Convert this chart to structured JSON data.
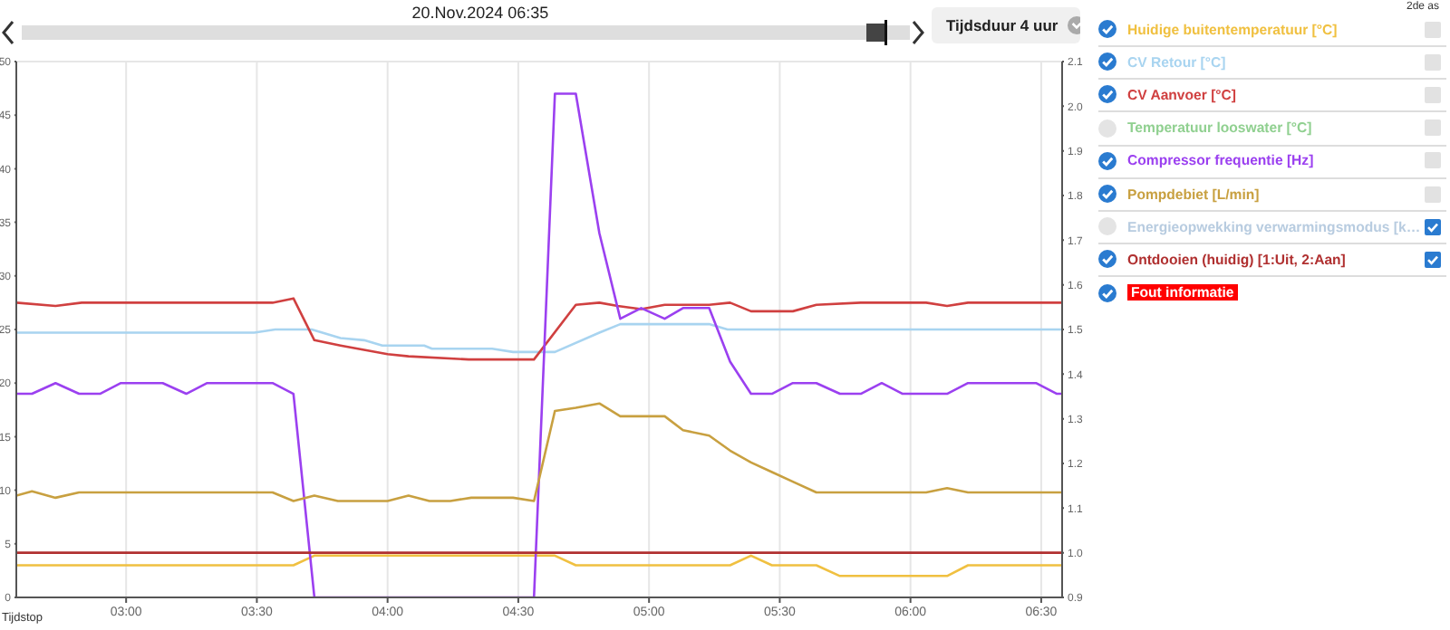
{
  "chart_data": {
    "type": "line",
    "title": "20.Nov.2024 06:35",
    "xlabel": "Tijdstop",
    "legend_title": "2de as",
    "annotations": [
      "Tijdsduur 4 uur",
      "Temperatuur looswater [°C]",
      "Energieopwekking verwarmingsmodus [k…",
      "Fout informatie"
    ],
    "xlim": [
      2.58,
      6.58
    ],
    "xticks": [
      {
        "value": 3,
        "label": "03:00"
      },
      {
        "value": 3.5,
        "label": "03:30"
      },
      {
        "value": 4,
        "label": "04:00"
      },
      {
        "value": 4.5,
        "label": "04:30"
      },
      {
        "value": 5,
        "label": "05:00"
      },
      {
        "value": 5.5,
        "label": "05:30"
      },
      {
        "value": 6,
        "label": "06:00"
      },
      {
        "value": 6.5,
        "label": "06:30"
      }
    ],
    "ylim": [
      0,
      50
    ],
    "yticks": [
      0,
      5,
      10,
      15,
      20,
      25,
      30,
      35,
      40,
      45,
      50
    ],
    "y2lim": [
      0.9,
      2.1
    ],
    "y2ticks": [
      0.9,
      {
        "value": 1,
        "label": "1.0"
      },
      1.1,
      1.2,
      1.3,
      1.4,
      1.5,
      1.6,
      1.7,
      1.8,
      1.9,
      {
        "value": 2,
        "label": "2.0"
      },
      2.1
    ],
    "grid": true,
    "legend": "right",
    "marker": "none",
    "line_style": "solid",
    "series": [
      {
        "name": "Huidige buitentemperatuur [°C]",
        "color": "#f0c040",
        "x": [
          2.58,
          3.64,
          3.72,
          4.64,
          4.72,
          5.31,
          5.39,
          5.47,
          5.64,
          5.73,
          6.14,
          6.22,
          6.58
        ],
        "values": [
          3.0,
          3.0,
          3.9,
          3.9,
          3.0,
          3.0,
          3.9,
          3.0,
          3.0,
          2.0,
          2.0,
          3.0,
          3.0
        ]
      },
      {
        "name": "CV Retour [°C]",
        "color": "#a8d4f0",
        "x": [
          2.58,
          3.49,
          3.57,
          3.71,
          3.82,
          3.91,
          3.98,
          4.14,
          4.17,
          4.4,
          4.48,
          4.64,
          4.81,
          4.89,
          5.23,
          5.3,
          6.58
        ],
        "values": [
          24.7,
          24.7,
          25.0,
          25.0,
          24.2,
          24.0,
          23.5,
          23.5,
          23.2,
          23.2,
          22.9,
          22.9,
          24.7,
          25.5,
          25.5,
          25.0,
          25.0
        ]
      },
      {
        "name": "CV Aanvoer [°C]",
        "color": "#d04040",
        "x": [
          2.58,
          2.73,
          2.83,
          3.56,
          3.64,
          3.72,
          3.82,
          3.91,
          4.0,
          4.08,
          4.31,
          4.56,
          4.72,
          4.81,
          4.88,
          4.97,
          5.06,
          5.23,
          5.31,
          5.39,
          5.55,
          5.64,
          5.81,
          6.06,
          6.14,
          6.22,
          6.58
        ],
        "values": [
          27.5,
          27.2,
          27.5,
          27.5,
          27.9,
          24.0,
          23.5,
          23.1,
          22.7,
          22.5,
          22.2,
          22.2,
          27.3,
          27.5,
          27.2,
          26.9,
          27.3,
          27.3,
          27.5,
          26.7,
          26.7,
          27.3,
          27.5,
          27.5,
          27.2,
          27.5,
          27.5
        ]
      },
      {
        "name": "Compressor frequentie [Hz]",
        "color": "#9b40f0",
        "x": [
          2.58,
          2.64,
          2.73,
          2.82,
          2.9,
          2.98,
          3.14,
          3.23,
          3.31,
          3.56,
          3.64,
          3.72,
          4.56,
          4.64,
          4.72,
          4.81,
          4.89,
          4.97,
          5.06,
          5.13,
          5.23,
          5.31,
          5.39,
          5.47,
          5.55,
          5.64,
          5.73,
          5.81,
          5.89,
          5.97,
          6.14,
          6.22,
          6.48,
          6.56,
          6.58
        ],
        "values": [
          19,
          19,
          20,
          19,
          19,
          20,
          20,
          19,
          20,
          20,
          19,
          0,
          0,
          47,
          47,
          34,
          26,
          27,
          26,
          27,
          27,
          22,
          19,
          19,
          20,
          20,
          19,
          19,
          20,
          19,
          19,
          20,
          20,
          19,
          19
        ]
      },
      {
        "name": "Pompdebiet [L/min]",
        "color": "#c8a040",
        "x": [
          2.58,
          2.64,
          2.73,
          2.82,
          3.56,
          3.64,
          3.72,
          3.81,
          4.0,
          4.08,
          4.16,
          4.24,
          4.32,
          4.48,
          4.56,
          4.64,
          4.72,
          4.81,
          4.89,
          5.06,
          5.13,
          5.23,
          5.31,
          5.39,
          5.47,
          5.55,
          5.64,
          6.06,
          6.14,
          6.22,
          6.58
        ],
        "values": [
          9.5,
          9.9,
          9.3,
          9.8,
          9.8,
          9.0,
          9.5,
          9.0,
          9.0,
          9.5,
          9.0,
          9.0,
          9.3,
          9.3,
          9.0,
          17.4,
          17.7,
          18.1,
          16.9,
          16.9,
          15.6,
          15.1,
          13.7,
          12.6,
          11.7,
          10.8,
          9.8,
          9.8,
          10.2,
          9.8,
          9.8
        ]
      },
      {
        "name": "Ontdooien (huidig) [1:Uit, 2:Aan]",
        "color": "#b03030",
        "axis": "y2",
        "x": [
          2.58,
          6.58
        ],
        "values": [
          1,
          1
        ]
      }
    ]
  }
}
